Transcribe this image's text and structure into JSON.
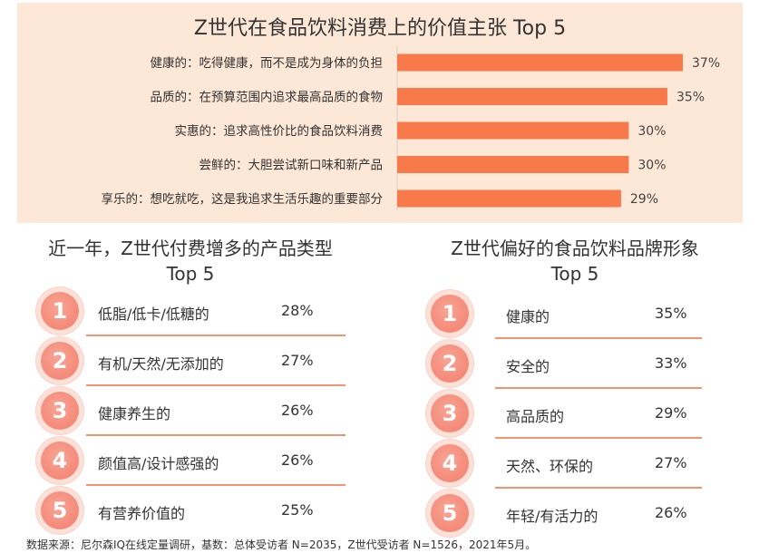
{
  "chart_data": [
    {
      "type": "bar",
      "orientation": "horizontal",
      "title": "Z世代在食品饮料消费上的价值主张 Top 5",
      "categories": [
        "健康的：吃得健康，而不是成为身体的负担",
        "品质的：在预算范围内追求最高品质的食物",
        "实惠的：追求高性价比的食品饮料消费",
        "尝鲜的：大胆尝试新口味和新产品",
        "享乐的：想吃就吃，这是我追求生活乐趣的重要部分"
      ],
      "values": [
        37,
        35,
        30,
        30,
        29
      ],
      "value_labels": [
        "37%",
        "35%",
        "30%",
        "30%",
        "29%"
      ],
      "bar_color": "#f87a4b",
      "background": "#fde7d6"
    },
    {
      "type": "table",
      "title": "近一年，Z世代付费增多的产品类型 Top 5",
      "title_lines": [
        "近一年，Z世代付费增多的产品类型",
        "Top 5"
      ],
      "rows": [
        {
          "rank": "1",
          "label": "低脂/低卡/低糖的",
          "value": 28,
          "value_label": "28%"
        },
        {
          "rank": "2",
          "label": "有机/天然/无添加的",
          "value": 27,
          "value_label": "27%"
        },
        {
          "rank": "3",
          "label": "健康养生的",
          "value": 26,
          "value_label": "26%"
        },
        {
          "rank": "4",
          "label": "颜值高/设计感强的",
          "value": 26,
          "value_label": "26%"
        },
        {
          "rank": "5",
          "label": "有营养价值的",
          "value": 25,
          "value_label": "25%"
        }
      ]
    },
    {
      "type": "table",
      "title": "Z世代偏好的食品饮料品牌形象 Top 5",
      "title_lines": [
        "Z世代偏好的食品饮料品牌形象",
        "Top 5"
      ],
      "rows": [
        {
          "rank": "1",
          "label": "健康的",
          "value": 35,
          "value_label": "35%"
        },
        {
          "rank": "2",
          "label": "安全的",
          "value": 33,
          "value_label": "33%"
        },
        {
          "rank": "3",
          "label": "高品质的",
          "value": 29,
          "value_label": "29%"
        },
        {
          "rank": "4",
          "label": "天然、环保的",
          "value": 27,
          "value_label": "27%"
        },
        {
          "rank": "5",
          "label": "年轻/有活力的",
          "value": 26,
          "value_label": "26%"
        }
      ]
    }
  ],
  "footer": "数据来源：尼尔森IQ在线定量调研，基数：总体受访者 N=2035，Z世代受访者 N=1526，2021年5月。",
  "colors": {
    "accent": "#f87a4b",
    "divider": "#f0956f",
    "circle": "#f58d7c",
    "panel": "#fde7d6"
  }
}
